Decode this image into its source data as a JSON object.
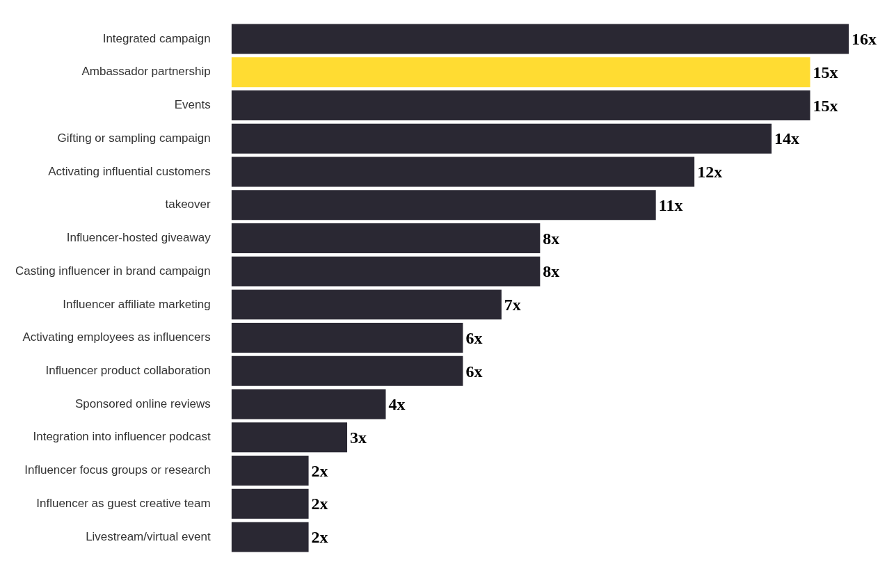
{
  "chart_data": {
    "type": "bar",
    "orientation": "horizontal",
    "categories": [
      "Integrated campaign",
      "Ambassador partnership",
      "Events",
      "Gifting or sampling campaign",
      "Activating influential customers",
      "takeover",
      "Influencer-hosted giveaway",
      "Casting influencer in brand campaign",
      "Influencer affiliate marketing",
      "Activating employees as influencers",
      "Influencer product collaboration",
      "Sponsored online reviews",
      "Integration into influencer podcast",
      "Influencer focus groups or research",
      "Influencer as guest creative team",
      "Livestream/virtual event"
    ],
    "values": [
      16,
      15,
      15,
      14,
      12,
      11,
      8,
      8,
      7,
      6,
      6,
      4,
      3,
      2,
      2,
      2
    ],
    "colors": [
      "#2a2833",
      "#ffdc32",
      "#2a2833",
      "#2a2833",
      "#2a2833",
      "#2a2833",
      "#2a2833",
      "#2a2833",
      "#2a2833",
      "#2a2833",
      "#2a2833",
      "#2a2833",
      "#2a2833",
      "#2a2833",
      "#2a2833",
      "#2a2833"
    ],
    "value_labels": [
      "16x",
      "15x",
      "15x",
      "14x",
      "12x",
      "11x",
      "8x",
      "8x",
      "7x",
      "6x",
      "6x",
      "4x",
      "3x",
      "2x",
      "2x",
      "2x"
    ],
    "xlim": [
      0,
      16
    ],
    "tick_labels": "y"
  }
}
